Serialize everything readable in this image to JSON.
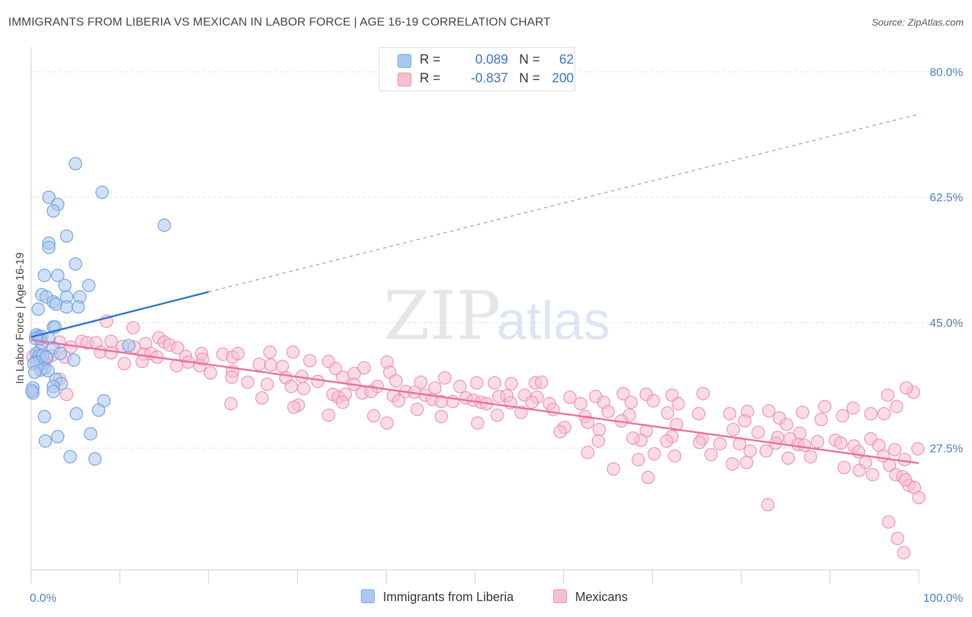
{
  "title": "IMMIGRANTS FROM LIBERIA VS MEXICAN IN LABOR FORCE | AGE 16-19 CORRELATION CHART",
  "source": "Source: ZipAtlas.com",
  "watermark": {
    "zip": "ZIP",
    "atlas": "atlas"
  },
  "legend": {
    "rows": [
      {
        "r_label": "R =",
        "r_value": "0.089",
        "n_label": "N =",
        "n_value": "62",
        "color": "#a9c8f0",
        "border": "#7aa5e0"
      },
      {
        "r_label": "R =",
        "r_value": "-0.837",
        "n_label": "N =",
        "n_value": "200",
        "color": "#f7bfd0",
        "border": "#ee8fae"
      }
    ]
  },
  "chart_data": {
    "type": "scatter",
    "title": "IMMIGRANTS FROM LIBERIA VS MEXICAN IN LABOR FORCE | AGE 16-19 CORRELATION CHART",
    "xlabel": "",
    "ylabel": "In Labor Force | Age 16-19",
    "x_tick_labels": [
      "0.0%",
      "100.0%"
    ],
    "y_tick_labels": [
      "27.5%",
      "45.0%",
      "62.5%",
      "80.0%"
    ],
    "y_ticks": [
      27.5,
      45.0,
      62.5,
      80.0
    ],
    "xlim": [
      0,
      100
    ],
    "ylim": [
      10.5,
      82.5
    ],
    "grid": "horizontal dashed",
    "legend_position": "bottom-center",
    "series": [
      {
        "name": "Immigrants from Liberia",
        "color": "#a9c8f0",
        "stroke": "#6f9ee0",
        "trend_color": "#2f6fd0",
        "trend": {
          "x0": 0,
          "y0": 43.0,
          "x1": 20,
          "y1": 49.3,
          "dashed_to_x": 100,
          "dashed_to_y": 74.1
        },
        "points": [
          [
            5,
            67.2
          ],
          [
            8,
            63.2
          ],
          [
            2,
            62.5
          ],
          [
            3,
            61.5
          ],
          [
            2.5,
            60.6
          ],
          [
            15,
            58.6
          ],
          [
            4,
            57.1
          ],
          [
            2,
            56.1
          ],
          [
            2,
            55.5
          ],
          [
            5,
            53.2
          ],
          [
            1.5,
            51.6
          ],
          [
            3,
            51.6
          ],
          [
            3.8,
            50.2
          ],
          [
            6.5,
            50.2
          ],
          [
            1.2,
            48.9
          ],
          [
            1.7,
            48.6
          ],
          [
            4,
            48.6
          ],
          [
            5.5,
            48.6
          ],
          [
            2.5,
            47.9
          ],
          [
            2.8,
            47.6
          ],
          [
            0.8,
            46.9
          ],
          [
            4,
            47.2
          ],
          [
            5.3,
            47.2
          ],
          [
            2.5,
            44.4
          ],
          [
            2.7,
            44.4
          ],
          [
            0.6,
            43.3
          ],
          [
            0.8,
            43.1
          ],
          [
            1.2,
            43.1
          ],
          [
            0.5,
            42.8
          ],
          [
            1,
            42.8
          ],
          [
            2,
            42.8
          ],
          [
            11,
            41.8
          ],
          [
            2.5,
            41.5
          ],
          [
            1,
            41.1
          ],
          [
            3.3,
            40.7
          ],
          [
            0.6,
            40.7
          ],
          [
            0.9,
            40.4
          ],
          [
            1.3,
            40.4
          ],
          [
            1.7,
            40.2
          ],
          [
            4.8,
            39.8
          ],
          [
            0.6,
            39.5
          ],
          [
            0.3,
            39.3
          ],
          [
            1.5,
            38.6
          ],
          [
            1.1,
            38.4
          ],
          [
            1.9,
            38.3
          ],
          [
            2.8,
            37.1
          ],
          [
            3.4,
            36.5
          ],
          [
            2.5,
            36.1
          ],
          [
            0.2,
            35.9
          ],
          [
            2.5,
            35.4
          ],
          [
            0.2,
            35.2
          ],
          [
            8.2,
            34.1
          ],
          [
            7.6,
            32.8
          ],
          [
            5.1,
            32.3
          ],
          [
            1.5,
            31.9
          ],
          [
            6.7,
            29.5
          ],
          [
            3,
            29.1
          ],
          [
            1.6,
            28.5
          ],
          [
            4.4,
            26.3
          ],
          [
            7.2,
            26
          ],
          [
            0.1,
            35.5
          ],
          [
            0.4,
            38.1
          ]
        ]
      },
      {
        "name": "Mexicans",
        "color": "#f7bfd0",
        "stroke": "#ee8fae",
        "trend_color": "#e8709a",
        "trend": {
          "x0": 0,
          "y0": 42.6,
          "x1": 100,
          "y1": 25.4
        },
        "points": [
          [
            8.5,
            45.2
          ],
          [
            11.5,
            44.3
          ],
          [
            1.2,
            42.2
          ],
          [
            3.2,
            42.3
          ],
          [
            5.7,
            42.4
          ],
          [
            6.3,
            42.2
          ],
          [
            7.3,
            42.2
          ],
          [
            9,
            42.4
          ],
          [
            11.6,
            41.6
          ],
          [
            12.9,
            42.1
          ],
          [
            14.4,
            42.9
          ],
          [
            15,
            42.3
          ],
          [
            15.6,
            41.9
          ],
          [
            10.3,
            41.7
          ],
          [
            4.5,
            41.6
          ],
          [
            7.8,
            40.9
          ],
          [
            9,
            40.8
          ],
          [
            2.3,
            40.4
          ],
          [
            1.8,
            40.1
          ],
          [
            0.8,
            40.1
          ],
          [
            0.2,
            40.3
          ],
          [
            1.1,
            39.8
          ],
          [
            1.5,
            39.4
          ],
          [
            3.8,
            40.2
          ],
          [
            12.7,
            40.6
          ],
          [
            13.5,
            40.7
          ],
          [
            14.2,
            40.2
          ],
          [
            16.5,
            41.5
          ],
          [
            17.4,
            40.3
          ],
          [
            19.2,
            40.7
          ],
          [
            19.3,
            39.9
          ],
          [
            21.6,
            40.6
          ],
          [
            22.7,
            40.2
          ],
          [
            23.3,
            40.7
          ],
          [
            26.9,
            40.9
          ],
          [
            29.5,
            40.9
          ],
          [
            31.4,
            39.7
          ],
          [
            33.5,
            39.6
          ],
          [
            37.5,
            38.7
          ],
          [
            10.5,
            39.3
          ],
          [
            12.5,
            39.6
          ],
          [
            16.4,
            39.0
          ],
          [
            17.7,
            39.5
          ],
          [
            19,
            39.0
          ],
          [
            20.2,
            38.0
          ],
          [
            22.7,
            38.2
          ],
          [
            25.7,
            39.2
          ],
          [
            27,
            39.1
          ],
          [
            28.3,
            38.9
          ],
          [
            34.3,
            38.6
          ],
          [
            36.4,
            37.9
          ],
          [
            40.1,
            39.5
          ],
          [
            22.6,
            37.4
          ],
          [
            28.7,
            37.3
          ],
          [
            30.5,
            37.5
          ],
          [
            40.4,
            38.1
          ],
          [
            35.1,
            37.4
          ],
          [
            3.2,
            37.1
          ],
          [
            24.4,
            36.7
          ],
          [
            26.6,
            36.4
          ],
          [
            29.3,
            36.1
          ],
          [
            30.7,
            35.8
          ],
          [
            32.3,
            36.8
          ],
          [
            36.4,
            36.4
          ],
          [
            41.1,
            36.9
          ],
          [
            43.9,
            36.7
          ],
          [
            46.6,
            37.3
          ],
          [
            50.2,
            36.6
          ],
          [
            48.3,
            36.1
          ],
          [
            52.2,
            36.6
          ],
          [
            54.1,
            36.5
          ],
          [
            56.8,
            36.6
          ],
          [
            57.5,
            36.7
          ],
          [
            39,
            36.1
          ],
          [
            42.2,
            35.4
          ],
          [
            45.5,
            35.9
          ],
          [
            37.3,
            35.2
          ],
          [
            38.3,
            35.4
          ],
          [
            43.2,
            35.3
          ],
          [
            34,
            35.0
          ],
          [
            34.6,
            34.6
          ],
          [
            35.4,
            35.0
          ],
          [
            40.8,
            34.8
          ],
          [
            44.4,
            34.9
          ],
          [
            45.2,
            34.3
          ],
          [
            49,
            34.5
          ],
          [
            52.7,
            34.7
          ],
          [
            53.6,
            34.8
          ],
          [
            55.6,
            34.9
          ],
          [
            57,
            34.6
          ],
          [
            60.7,
            34.6
          ],
          [
            63.6,
            34.7
          ],
          [
            66.7,
            35.1
          ],
          [
            69.3,
            35.0
          ],
          [
            72.2,
            34.9
          ],
          [
            75.7,
            35.1
          ],
          [
            4,
            35.0
          ],
          [
            26,
            34.5
          ],
          [
            41.4,
            34.1
          ],
          [
            46.2,
            34.0
          ],
          [
            47.5,
            34.0
          ],
          [
            49.8,
            34.2
          ],
          [
            50.7,
            33.9
          ],
          [
            51.3,
            33.7
          ],
          [
            54,
            33.8
          ],
          [
            56.4,
            33.9
          ],
          [
            58.4,
            33.7
          ],
          [
            61.9,
            33.7
          ],
          [
            64.5,
            33.9
          ],
          [
            67.6,
            33.9
          ],
          [
            70.1,
            34.1
          ],
          [
            72.9,
            33.7
          ],
          [
            35.1,
            33.9
          ],
          [
            30.1,
            33.5
          ],
          [
            29.6,
            33.2
          ],
          [
            22.5,
            33.7
          ],
          [
            43.5,
            32.9
          ],
          [
            55.2,
            32.5
          ],
          [
            58.8,
            32.9
          ],
          [
            65,
            32.6
          ],
          [
            71.7,
            32.4
          ],
          [
            75.2,
            32.3
          ],
          [
            80.7,
            32.6
          ],
          [
            83.1,
            32.7
          ],
          [
            86.9,
            32.5
          ],
          [
            89.4,
            33.3
          ],
          [
            92.6,
            33.1
          ],
          [
            33.5,
            32.1
          ],
          [
            38.6,
            32.0
          ],
          [
            46.2,
            31.9
          ],
          [
            52.5,
            32.1
          ],
          [
            62.4,
            31.9
          ],
          [
            67.4,
            32.1
          ],
          [
            78.7,
            32.3
          ],
          [
            84.3,
            31.7
          ],
          [
            80.4,
            31.3
          ],
          [
            89,
            31.5
          ],
          [
            91.4,
            32.0
          ],
          [
            94.6,
            32.3
          ],
          [
            96.1,
            32.3
          ],
          [
            97.5,
            33.3
          ],
          [
            99.4,
            35.3
          ],
          [
            98.6,
            35.9
          ],
          [
            96.5,
            34.9
          ],
          [
            62.7,
            31.1
          ],
          [
            66.5,
            31.3
          ],
          [
            72.7,
            30.8
          ],
          [
            85.1,
            30.8
          ],
          [
            40.1,
            31.0
          ],
          [
            79.1,
            30.1
          ],
          [
            60.1,
            30.4
          ],
          [
            64,
            30.1
          ],
          [
            59.6,
            29.8
          ],
          [
            69.3,
            29.9
          ],
          [
            81.9,
            29.7
          ],
          [
            84.1,
            29.0
          ],
          [
            86.6,
            29.6
          ],
          [
            72.2,
            29.1
          ],
          [
            75.6,
            28.8
          ],
          [
            85.5,
            28.8
          ],
          [
            83.9,
            28.2
          ],
          [
            63.9,
            28.5
          ],
          [
            68.7,
            28.6
          ],
          [
            67.8,
            28.9
          ],
          [
            71.6,
            28.5
          ],
          [
            75.3,
            28.3
          ],
          [
            77.6,
            28.1
          ],
          [
            79.8,
            28.1
          ],
          [
            86.4,
            28.0
          ],
          [
            87.1,
            27.9
          ],
          [
            88.6,
            28.4
          ],
          [
            90.6,
            28.6
          ],
          [
            91.2,
            28.2
          ],
          [
            92.7,
            27.8
          ],
          [
            94.6,
            28.8
          ],
          [
            95.5,
            27.9
          ],
          [
            97.3,
            27.3
          ],
          [
            99.9,
            27.4
          ],
          [
            81,
            27.1
          ],
          [
            82.8,
            27.1
          ],
          [
            93.2,
            27.0
          ],
          [
            96,
            26.4
          ],
          [
            98.4,
            25.9
          ],
          [
            87.8,
            26.3
          ],
          [
            85.3,
            26.1
          ],
          [
            79,
            25.3
          ],
          [
            80.6,
            25.5
          ],
          [
            94,
            25.5
          ],
          [
            96.7,
            25.1
          ],
          [
            91.6,
            24.8
          ],
          [
            93.3,
            24.4
          ],
          [
            94.8,
            23.8
          ],
          [
            97.4,
            23.8
          ],
          [
            98.2,
            23.5
          ],
          [
            98.9,
            22.3
          ],
          [
            99.5,
            22.0
          ],
          [
            72.5,
            26.4
          ],
          [
            76.6,
            26.6
          ],
          [
            70.2,
            26.7
          ],
          [
            65.6,
            24.6
          ],
          [
            68.4,
            25.9
          ],
          [
            62.7,
            26.9
          ],
          [
            69.5,
            23.4
          ],
          [
            83,
            19.6
          ],
          [
            96.6,
            17.2
          ],
          [
            97.6,
            14.9
          ],
          [
            98.3,
            12.9
          ],
          [
            100,
            20.6
          ],
          [
            98.5,
            23.1
          ],
          [
            50.3,
            31.0
          ]
        ]
      }
    ]
  }
}
